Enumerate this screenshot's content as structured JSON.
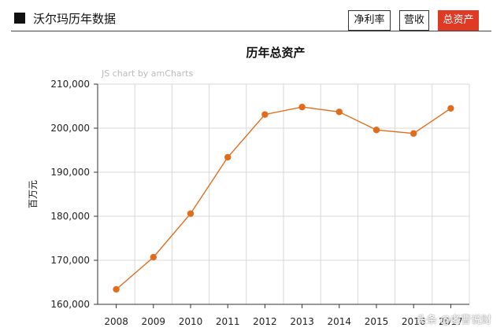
{
  "header": {
    "title": "沃尔玛历年数据",
    "tabs": [
      {
        "label": "净利率",
        "active": false
      },
      {
        "label": "营收",
        "active": false
      },
      {
        "label": "总资产",
        "active": true
      }
    ]
  },
  "credit": "JS chart by amCharts",
  "watermark": "头条 @老曹说财",
  "colors": {
    "series": "#e06c1c",
    "active_tab": "#e03a24",
    "grid": "#d8d8d8"
  },
  "chart_data": {
    "type": "line",
    "title": "历年总资产",
    "xlabel": "",
    "ylabel": "百万元",
    "categories": [
      "2008",
      "2009",
      "2010",
      "2011",
      "2012",
      "2013",
      "2014",
      "2015",
      "2016",
      "2017"
    ],
    "values": [
      163400,
      170700,
      180600,
      193400,
      203100,
      204800,
      203700,
      199600,
      198800,
      204500
    ],
    "ylim": [
      160000,
      210000
    ],
    "yticks": [
      160000,
      170000,
      180000,
      190000,
      200000,
      210000
    ],
    "ytick_labels": [
      "160,000",
      "170,000",
      "180,000",
      "190,000",
      "200,000",
      "210,000"
    ],
    "grid": true,
    "legend": "none"
  }
}
